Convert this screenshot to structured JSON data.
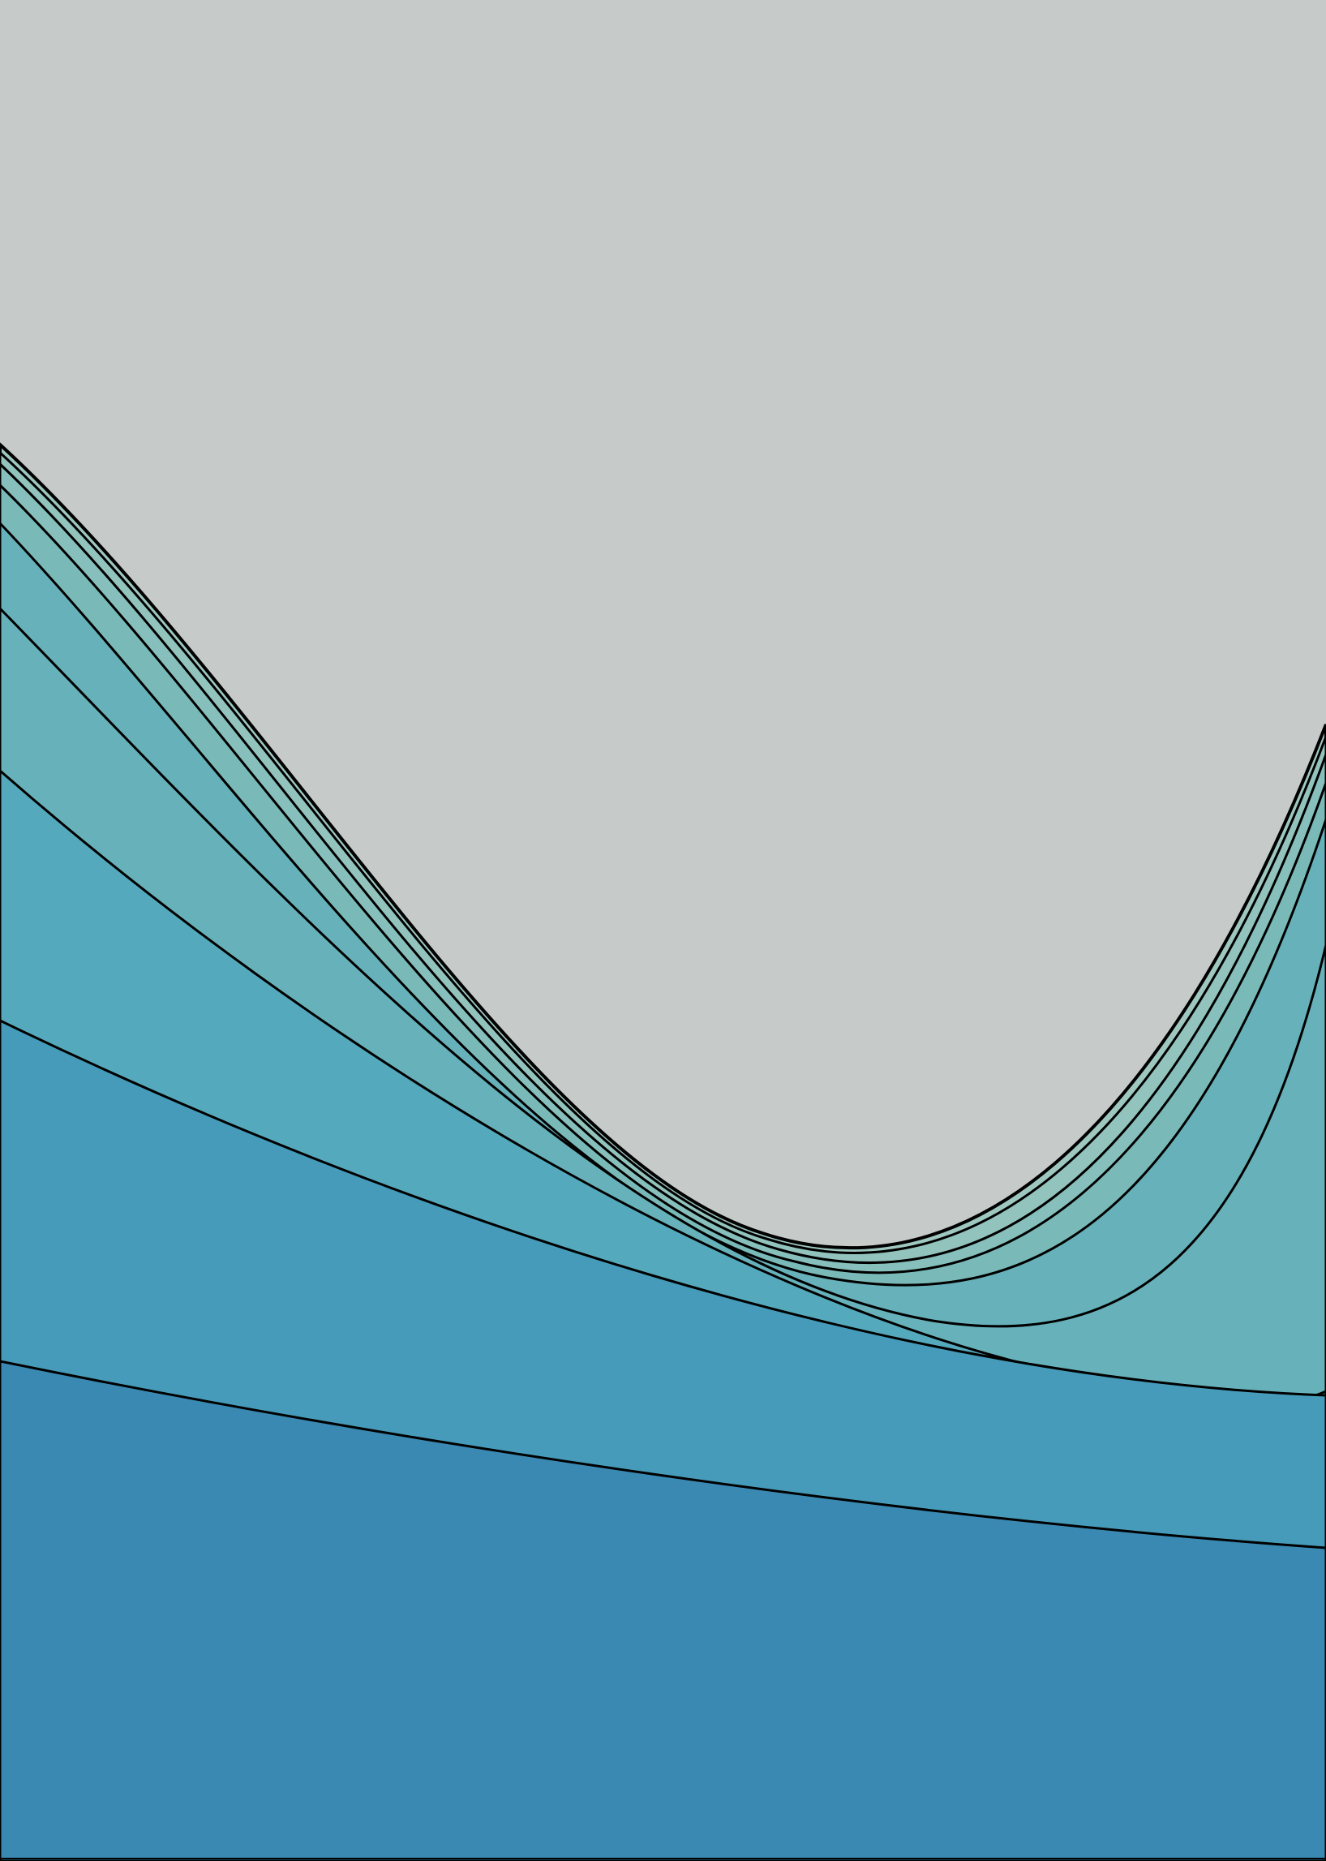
{
  "artwork": {
    "background_color": "#c6cbca",
    "outline_color": "#000000",
    "band_colors": [
      "#3a89b2",
      "#459bb9",
      "#55a9bd",
      "#67b1ba",
      "#79bab9",
      "#86bfbb",
      "#92c3bd",
      "#9ec7c0"
    ]
  }
}
